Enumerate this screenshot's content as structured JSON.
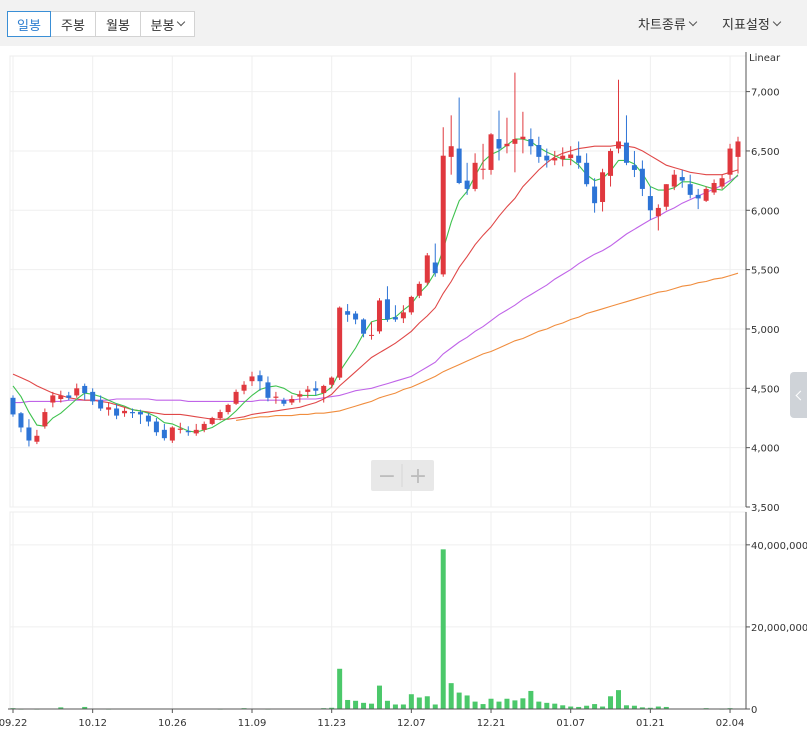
{
  "toolbar": {
    "tabs": [
      "일봉",
      "주봉",
      "월봉",
      "분봉"
    ],
    "active_tab": "일봉",
    "chart_type_label": "차트종류",
    "indicator_label": "지표설정"
  },
  "zoom": {
    "minus": "−",
    "plus": "+"
  },
  "colors": {
    "up": "#e0383e",
    "down": "#2d74d6",
    "ma5": "#3fc24f",
    "ma20": "#e04848",
    "ma60": "#c064e8",
    "ma120": "#f08d3e",
    "volume": "#4bc86a"
  },
  "chart_data": {
    "type": "candlestick",
    "price_axis": {
      "scale_label": "Linear",
      "ylim": [
        3500,
        7300
      ],
      "ticks": [
        "7,000",
        "6,500",
        "6,000",
        "5,500",
        "5,000",
        "4,500",
        "4,000",
        "3,500"
      ],
      "tick_values": [
        7000,
        6500,
        6000,
        5500,
        5000,
        4500,
        4000,
        3500
      ]
    },
    "volume_axis": {
      "ylim": [
        0,
        48000000
      ],
      "ticks": [
        "40,000,000",
        "20,000,000",
        "0"
      ],
      "tick_values": [
        40000000,
        20000000,
        0
      ]
    },
    "x_ticks": [
      {
        "label": "09.22",
        "index": 0
      },
      {
        "label": "10.12",
        "index": 10
      },
      {
        "label": "10.26",
        "index": 20
      },
      {
        "label": "11.09",
        "index": 30
      },
      {
        "label": "11.23",
        "index": 40
      },
      {
        "label": "12.07",
        "index": 50
      },
      {
        "label": "12.21",
        "index": 60
      },
      {
        "label": "01.07",
        "index": 70
      },
      {
        "label": "01.21",
        "index": 80
      },
      {
        "label": "02.04",
        "index": 90
      }
    ],
    "ohlc": [
      [
        4420,
        4440,
        4260,
        4280
      ],
      [
        4290,
        4300,
        4130,
        4170
      ],
      [
        4170,
        4240,
        4010,
        4060
      ],
      [
        4050,
        4150,
        4030,
        4100
      ],
      [
        4180,
        4330,
        4160,
        4300
      ],
      [
        4380,
        4470,
        4340,
        4440
      ],
      [
        4410,
        4480,
        4380,
        4440
      ],
      [
        4440,
        4470,
        4400,
        4420
      ],
      [
        4440,
        4540,
        4420,
        4500
      ],
      [
        4520,
        4540,
        4400,
        4460
      ],
      [
        4470,
        4500,
        4360,
        4390
      ],
      [
        4400,
        4440,
        4310,
        4330
      ],
      [
        4320,
        4380,
        4270,
        4340
      ],
      [
        4330,
        4370,
        4240,
        4270
      ],
      [
        4290,
        4340,
        4260,
        4310
      ],
      [
        4300,
        4330,
        4250,
        4290
      ],
      [
        4300,
        4320,
        4200,
        4280
      ],
      [
        4270,
        4290,
        4180,
        4220
      ],
      [
        4220,
        4250,
        4100,
        4130
      ],
      [
        4150,
        4200,
        4060,
        4080
      ],
      [
        4060,
        4180,
        4040,
        4170
      ],
      [
        4150,
        4210,
        4120,
        4160
      ],
      [
        4140,
        4180,
        4100,
        4130
      ],
      [
        4120,
        4200,
        4100,
        4150
      ],
      [
        4150,
        4220,
        4130,
        4200
      ],
      [
        4200,
        4260,
        4190,
        4250
      ],
      [
        4250,
        4320,
        4230,
        4300
      ],
      [
        4300,
        4370,
        4280,
        4360
      ],
      [
        4370,
        4490,
        4360,
        4470
      ],
      [
        4480,
        4560,
        4450,
        4530
      ],
      [
        4560,
        4640,
        4520,
        4600
      ],
      [
        4610,
        4650,
        4480,
        4560
      ],
      [
        4550,
        4600,
        4390,
        4420
      ],
      [
        4420,
        4470,
        4370,
        4430
      ],
      [
        4400,
        4420,
        4350,
        4370
      ],
      [
        4380,
        4440,
        4360,
        4410
      ],
      [
        4430,
        4480,
        4380,
        4450
      ],
      [
        4470,
        4520,
        4420,
        4490
      ],
      [
        4500,
        4560,
        4440,
        4480
      ],
      [
        4460,
        4530,
        4380,
        4520
      ],
      [
        4530,
        4600,
        4500,
        4590
      ],
      [
        4590,
        5190,
        4570,
        5180
      ],
      [
        5150,
        5210,
        5060,
        5120
      ],
      [
        5130,
        5150,
        5040,
        5080
      ],
      [
        5080,
        5090,
        4930,
        4960
      ],
      [
        4950,
        5060,
        4910,
        4950
      ],
      [
        4980,
        5260,
        4960,
        5240
      ],
      [
        5250,
        5360,
        5060,
        5080
      ],
      [
        5100,
        5200,
        5060,
        5080
      ],
      [
        5090,
        5200,
        5050,
        5140
      ],
      [
        5140,
        5280,
        5120,
        5270
      ],
      [
        5280,
        5400,
        5260,
        5380
      ],
      [
        5390,
        5640,
        5370,
        5620
      ],
      [
        5560,
        5720,
        5440,
        5470
      ],
      [
        5460,
        6700,
        5440,
        6460
      ],
      [
        6450,
        6800,
        6300,
        6540
      ],
      [
        6520,
        6950,
        6220,
        6230
      ],
      [
        6250,
        6400,
        6130,
        6180
      ],
      [
        6180,
        6480,
        6160,
        6400
      ],
      [
        6350,
        6560,
        6260,
        6350
      ],
      [
        6340,
        6650,
        6300,
        6640
      ],
      [
        6600,
        6840,
        6420,
        6520
      ],
      [
        6540,
        6780,
        6480,
        6560
      ],
      [
        6560,
        7160,
        6320,
        6600
      ],
      [
        6600,
        6830,
        6480,
        6620
      ],
      [
        6600,
        6690,
        6470,
        6540
      ],
      [
        6550,
        6620,
        6400,
        6450
      ],
      [
        6460,
        6520,
        6360,
        6420
      ],
      [
        6420,
        6500,
        6380,
        6440
      ],
      [
        6430,
        6530,
        6370,
        6460
      ],
      [
        6440,
        6540,
        6380,
        6470
      ],
      [
        6460,
        6580,
        6350,
        6400
      ],
      [
        6400,
        6480,
        6200,
        6220
      ],
      [
        6200,
        6270,
        5980,
        6060
      ],
      [
        6070,
        6350,
        5990,
        6320
      ],
      [
        6290,
        6520,
        6200,
        6500
      ],
      [
        6520,
        7100,
        6480,
        6580
      ],
      [
        6570,
        6800,
        6380,
        6400
      ],
      [
        6380,
        6500,
        6280,
        6340
      ],
      [
        6350,
        6420,
        6120,
        6180
      ],
      [
        6120,
        6200,
        5920,
        6000
      ],
      [
        5950,
        6050,
        5830,
        6020
      ],
      [
        6030,
        6220,
        6000,
        6220
      ],
      [
        6200,
        6340,
        6170,
        6300
      ],
      [
        6280,
        6340,
        6190,
        6250
      ],
      [
        6220,
        6300,
        6100,
        6130
      ],
      [
        6130,
        6180,
        6010,
        6100
      ],
      [
        6080,
        6200,
        6070,
        6180
      ],
      [
        6150,
        6260,
        6130,
        6230
      ],
      [
        6200,
        6300,
        6180,
        6270
      ],
      [
        6300,
        6560,
        6260,
        6520
      ],
      [
        6450,
        6620,
        6310,
        6580
      ]
    ],
    "ma5": [
      4520,
      4430,
      4300,
      4190,
      4180,
      4250,
      4290,
      4350,
      4410,
      4460,
      4450,
      4430,
      4400,
      4370,
      4350,
      4320,
      4310,
      4290,
      4260,
      4210,
      4200,
      4170,
      4140,
      4130,
      4150,
      4170,
      4210,
      4250,
      4310,
      4380,
      4440,
      4490,
      4510,
      4520,
      4500,
      4460,
      4440,
      4440,
      4440,
      4460,
      4510,
      4640,
      4740,
      4840,
      4960,
      5060,
      5080,
      5080,
      5100,
      5160,
      5210,
      5300,
      5370,
      5480,
      5670,
      5900,
      6080,
      6160,
      6290,
      6410,
      6470,
      6500,
      6550,
      6600,
      6600,
      6580,
      6530,
      6490,
      6460,
      6430,
      6430,
      6380,
      6300,
      6250,
      6270,
      6330,
      6420,
      6420,
      6390,
      6310,
      6200,
      6170,
      6170,
      6190,
      6240,
      6240,
      6220,
      6200,
      6180,
      6170,
      6230,
      6300
    ],
    "ma20": [
      4620,
      4590,
      4560,
      4520,
      4490,
      4460,
      4440,
      4420,
      4410,
      4400,
      4400,
      4390,
      4380,
      4360,
      4340,
      4320,
      4310,
      4300,
      4290,
      4280,
      4280,
      4280,
      4270,
      4260,
      4250,
      4240,
      4240,
      4240,
      4250,
      4260,
      4280,
      4290,
      4300,
      4310,
      4320,
      4330,
      4340,
      4360,
      4380,
      4410,
      4450,
      4520,
      4580,
      4640,
      4700,
      4760,
      4800,
      4840,
      4880,
      4930,
      4980,
      5050,
      5110,
      5180,
      5300,
      5400,
      5520,
      5610,
      5710,
      5790,
      5860,
      5950,
      6030,
      6100,
      6200,
      6270,
      6340,
      6400,
      6450,
      6480,
      6500,
      6520,
      6530,
      6540,
      6540,
      6540,
      6550,
      6540,
      6530,
      6500,
      6460,
      6420,
      6380,
      6360,
      6340,
      6320,
      6310,
      6300,
      6300,
      6300,
      6320,
      6340
    ],
    "ma60": [
      4380,
      4380,
      4390,
      4390,
      4390,
      4390,
      4390,
      4400,
      4400,
      4400,
      4400,
      4400,
      4400,
      4410,
      4410,
      4410,
      4410,
      4410,
      4400,
      4400,
      4400,
      4400,
      4390,
      4390,
      4390,
      4390,
      4390,
      4390,
      4390,
      4390,
      4390,
      4400,
      4400,
      4400,
      4400,
      4400,
      4410,
      4410,
      4410,
      4420,
      4430,
      4440,
      4460,
      4480,
      4490,
      4500,
      4520,
      4540,
      4560,
      4580,
      4600,
      4640,
      4680,
      4720,
      4790,
      4840,
      4890,
      4930,
      4980,
      5020,
      5070,
      5120,
      5160,
      5200,
      5250,
      5290,
      5330,
      5370,
      5420,
      5460,
      5500,
      5550,
      5590,
      5630,
      5660,
      5700,
      5750,
      5800,
      5840,
      5880,
      5920,
      5950,
      5990,
      6020,
      6060,
      6090,
      6120,
      6150,
      6180,
      6210,
      6250,
      6290
    ],
    "ma120": [
      null,
      null,
      null,
      null,
      null,
      null,
      null,
      null,
      null,
      null,
      null,
      null,
      null,
      null,
      null,
      null,
      null,
      null,
      null,
      null,
      null,
      null,
      null,
      null,
      null,
      null,
      null,
      null,
      4230,
      4240,
      4250,
      4260,
      4260,
      4270,
      4270,
      4270,
      4280,
      4280,
      4290,
      4290,
      4300,
      4310,
      4330,
      4350,
      4370,
      4390,
      4420,
      4440,
      4460,
      4490,
      4510,
      4540,
      4570,
      4600,
      4640,
      4670,
      4700,
      4730,
      4760,
      4790,
      4810,
      4840,
      4870,
      4900,
      4920,
      4950,
      4980,
      5000,
      5030,
      5050,
      5080,
      5100,
      5130,
      5150,
      5170,
      5190,
      5210,
      5230,
      5250,
      5270,
      5290,
      5310,
      5320,
      5340,
      5360,
      5370,
      5390,
      5400,
      5420,
      5430,
      5450,
      5470
    ],
    "volume": [
      200000,
      100000,
      0,
      100000,
      0,
      0,
      400000,
      0,
      0,
      500000,
      0,
      0,
      100000,
      0,
      0,
      0,
      0,
      0,
      0,
      0,
      0,
      0,
      0,
      0,
      0,
      0,
      100000,
      0,
      0,
      200000,
      0,
      0,
      100000,
      0,
      0,
      0,
      0,
      0,
      0,
      200000,
      300000,
      9800000,
      2200000,
      2000000,
      1500000,
      1300000,
      5700000,
      2000000,
      1100000,
      1100000,
      3600000,
      2800000,
      3100000,
      1100000,
      38900000,
      6300000,
      4000000,
      3300000,
      1800000,
      1200000,
      2500000,
      1800000,
      2500000,
      2100000,
      2600000,
      4400000,
      1800000,
      1500000,
      1300000,
      900000,
      600000,
      500000,
      800000,
      1200000,
      600000,
      3100000,
      4600000,
      900000,
      800000,
      400000,
      300000,
      600000,
      500000,
      0,
      0,
      0,
      0,
      200000,
      0,
      100000,
      200000,
      0
    ]
  }
}
